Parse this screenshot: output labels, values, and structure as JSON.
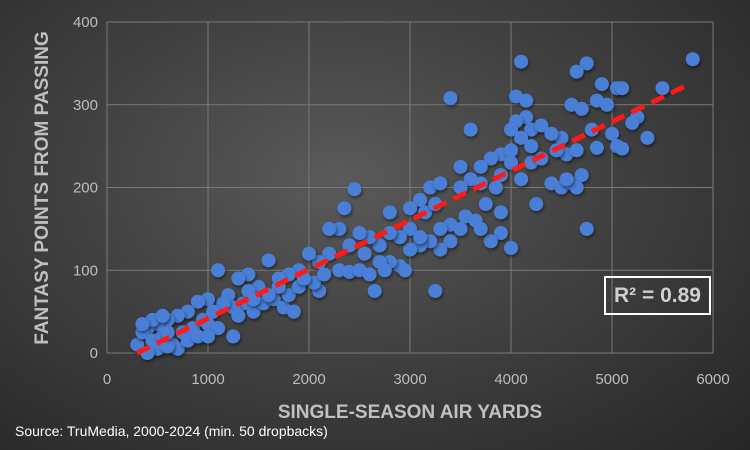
{
  "chart_data": {
    "type": "scatter",
    "title": "",
    "xlabel": "SINGLE-SEASON AIR YARDS",
    "ylabel": "FANTASY POINTS FROM PASSING",
    "xlim": [
      0,
      6000
    ],
    "ylim": [
      0,
      400
    ],
    "xticks": [
      "0",
      "1000",
      "2000",
      "3000",
      "4000",
      "5000",
      "6000"
    ],
    "yticks": [
      "0",
      "100",
      "200",
      "300",
      "400"
    ],
    "grid": true,
    "annotation": "R² = 0.89",
    "source": "Source: TruMedia, 2000-2024 (min. 50 dropbacks)",
    "trendline": {
      "x": [
        297,
        5750
      ],
      "y": [
        0,
        324
      ]
    },
    "colors": {
      "points": "#4a7fd6",
      "trendline": "#ff1a1a"
    },
    "points": [
      [
        4100,
        352
      ],
      [
        4750,
        350
      ],
      [
        4650,
        340
      ],
      [
        5800,
        355
      ],
      [
        4900,
        325
      ],
      [
        5050,
        320
      ],
      [
        5100,
        320
      ],
      [
        5500,
        320
      ],
      [
        4850,
        305
      ],
      [
        4950,
        300
      ],
      [
        4050,
        310
      ],
      [
        4150,
        305
      ],
      [
        3400,
        308
      ],
      [
        4600,
        300
      ],
      [
        4700,
        295
      ],
      [
        5250,
        285
      ],
      [
        5200,
        278
      ],
      [
        5000,
        265
      ],
      [
        4800,
        270
      ],
      [
        4500,
        260
      ],
      [
        5350,
        260
      ],
      [
        5050,
        250
      ],
      [
        5100,
        247
      ],
      [
        4850,
        248
      ],
      [
        4550,
        240
      ],
      [
        4650,
        245
      ],
      [
        4150,
        285
      ],
      [
        4050,
        280
      ],
      [
        4200,
        270
      ],
      [
        4300,
        275
      ],
      [
        4400,
        265
      ],
      [
        4000,
        270
      ],
      [
        3600,
        270
      ],
      [
        4100,
        260
      ],
      [
        3900,
        240
      ],
      [
        4000,
        245
      ],
      [
        3800,
        235
      ],
      [
        3700,
        225
      ],
      [
        3500,
        225
      ],
      [
        3900,
        215
      ],
      [
        4000,
        230
      ],
      [
        4200,
        230
      ],
      [
        4300,
        235
      ],
      [
        3600,
        210
      ],
      [
        3700,
        205
      ],
      [
        3500,
        200
      ],
      [
        3850,
        200
      ],
      [
        4100,
        210
      ],
      [
        4400,
        205
      ],
      [
        4500,
        200
      ],
      [
        4600,
        205
      ],
      [
        4700,
        215
      ],
      [
        4650,
        200
      ],
      [
        4550,
        210
      ],
      [
        4250,
        180
      ],
      [
        3750,
        180
      ],
      [
        3900,
        170
      ],
      [
        3550,
        165
      ],
      [
        3650,
        160
      ],
      [
        3400,
        155
      ],
      [
        3300,
        150
      ],
      [
        3200,
        200
      ],
      [
        3300,
        205
      ],
      [
        3100,
        185
      ],
      [
        3000,
        175
      ],
      [
        3150,
        170
      ],
      [
        3250,
        180
      ],
      [
        4750,
        150
      ],
      [
        3900,
        145
      ],
      [
        3800,
        135
      ],
      [
        4000,
        127
      ],
      [
        3500,
        150
      ],
      [
        3400,
        135
      ],
      [
        3300,
        125
      ],
      [
        3200,
        135
      ],
      [
        3100,
        130
      ],
      [
        3000,
        125
      ],
      [
        3250,
        75
      ],
      [
        2900,
        105
      ],
      [
        2950,
        100
      ],
      [
        2800,
        110
      ],
      [
        2700,
        130
      ],
      [
        2600,
        140
      ],
      [
        2500,
        145
      ],
      [
        2400,
        130
      ],
      [
        2300,
        150
      ],
      [
        2200,
        150
      ],
      [
        2350,
        175
      ],
      [
        2450,
        198
      ],
      [
        2800,
        170
      ],
      [
        2650,
        75
      ],
      [
        2100,
        75
      ],
      [
        2200,
        120
      ],
      [
        2100,
        110
      ],
      [
        2000,
        120
      ],
      [
        1900,
        100
      ],
      [
        1800,
        95
      ],
      [
        1700,
        90
      ],
      [
        1600,
        112
      ],
      [
        1500,
        80
      ],
      [
        1400,
        95
      ],
      [
        1300,
        90
      ],
      [
        1100,
        100
      ],
      [
        1200,
        70
      ],
      [
        1350,
        60
      ],
      [
        1250,
        55
      ],
      [
        1150,
        60
      ],
      [
        1000,
        65
      ],
      [
        900,
        62
      ],
      [
        800,
        50
      ],
      [
        700,
        45
      ],
      [
        600,
        40
      ],
      [
        500,
        35
      ],
      [
        400,
        30
      ],
      [
        300,
        10
      ],
      [
        350,
        25
      ],
      [
        450,
        15
      ],
      [
        550,
        20
      ],
      [
        650,
        10
      ],
      [
        750,
        25
      ],
      [
        850,
        30
      ],
      [
        950,
        40
      ],
      [
        1050,
        50
      ],
      [
        1250,
        20
      ],
      [
        700,
        5
      ],
      [
        500,
        5
      ],
      [
        400,
        0
      ],
      [
        600,
        8
      ],
      [
        800,
        15
      ],
      [
        1000,
        35
      ],
      [
        1450,
        50
      ],
      [
        1550,
        60
      ],
      [
        1650,
        65
      ],
      [
        1750,
        55
      ],
      [
        1800,
        70
      ],
      [
        1850,
        50
      ],
      [
        1900,
        80
      ],
      [
        2050,
        85
      ],
      [
        2150,
        95
      ],
      [
        2300,
        100
      ],
      [
        2400,
        98
      ],
      [
        2500,
        100
      ],
      [
        2600,
        95
      ],
      [
        2700,
        110
      ],
      [
        2750,
        100
      ],
      [
        3000,
        150
      ],
      [
        2900,
        140
      ],
      [
        2800,
        145
      ],
      [
        2550,
        120
      ],
      [
        1700,
        80
      ],
      [
        1400,
        75
      ],
      [
        1600,
        70
      ],
      [
        1300,
        45
      ],
      [
        1100,
        30
      ],
      [
        900,
        20
      ],
      [
        600,
        25
      ],
      [
        450,
        40
      ],
      [
        350,
        35
      ],
      [
        550,
        45
      ],
      [
        1000,
        20
      ],
      [
        1450,
        65
      ],
      [
        1950,
        90
      ],
      [
        3100,
        140
      ],
      [
        3700,
        150
      ],
      [
        4200,
        250
      ],
      [
        4450,
        245
      ]
    ]
  }
}
